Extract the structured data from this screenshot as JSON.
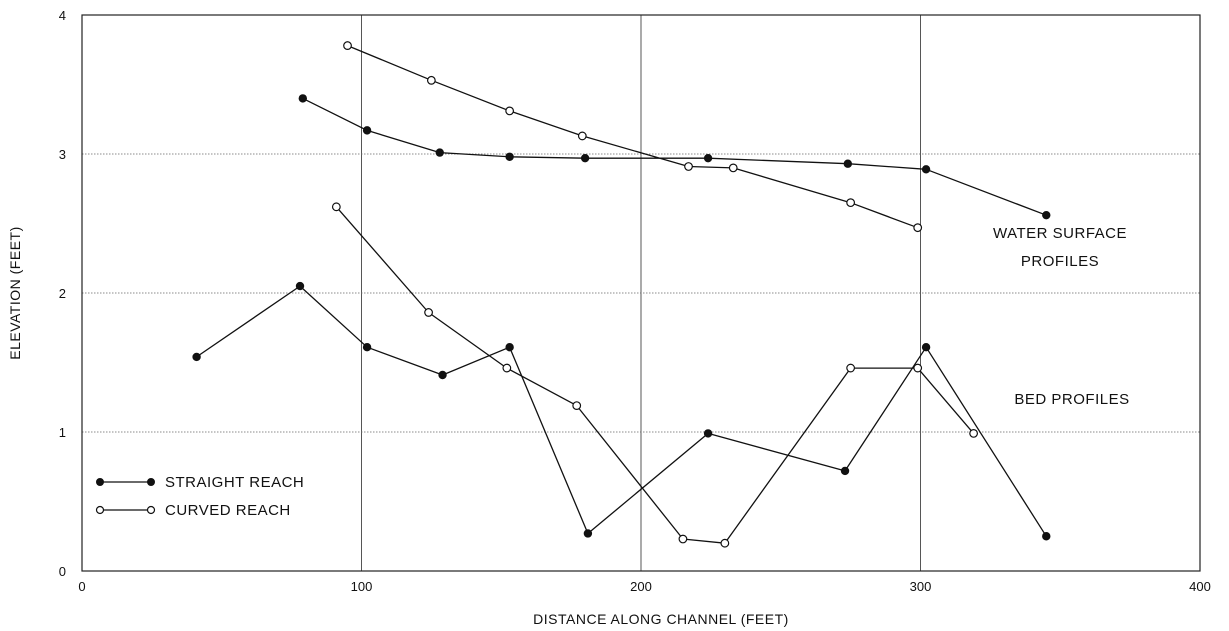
{
  "chart_data": {
    "type": "line",
    "title": "",
    "xlabel": "DISTANCE ALONG CHANNEL (FEET)",
    "ylabel": "ELEVATION (FEET)",
    "xlim": [
      0,
      400
    ],
    "ylim": [
      0,
      4
    ],
    "x_ticks": [
      0,
      100,
      200,
      300,
      400
    ],
    "y_ticks": [
      0,
      1,
      2,
      3,
      4
    ],
    "x_tick_labels": [
      "0",
      "100",
      "200",
      "300",
      "400"
    ],
    "y_tick_labels": [
      "0",
      "1",
      "2",
      "3",
      "4"
    ],
    "grid": true,
    "legend_position": "bottom-left",
    "series": [
      {
        "name": "STRAIGHT REACH",
        "group": "water-surface",
        "marker": "filled-circle",
        "x": [
          79,
          102,
          128,
          153,
          180,
          224,
          274,
          302,
          345
        ],
        "y": [
          3.4,
          3.17,
          3.01,
          2.98,
          2.97,
          2.97,
          2.93,
          2.89,
          2.56
        ]
      },
      {
        "name": "CURVED REACH",
        "group": "water-surface",
        "marker": "open-circle",
        "x": [
          95,
          125,
          153,
          179,
          217,
          233,
          275,
          299
        ],
        "y": [
          3.78,
          3.53,
          3.31,
          3.13,
          2.91,
          2.9,
          2.65,
          2.47
        ]
      },
      {
        "name": "STRAIGHT REACH",
        "group": "bed",
        "marker": "filled-circle",
        "x": [
          41,
          78,
          102,
          129,
          153,
          181,
          224,
          273,
          302,
          345
        ],
        "y": [
          1.54,
          2.05,
          1.61,
          1.41,
          1.61,
          0.27,
          0.99,
          0.72,
          1.61,
          0.25
        ]
      },
      {
        "name": "CURVED REACH",
        "group": "bed",
        "marker": "open-circle",
        "x": [
          91,
          124,
          152,
          177,
          215,
          230,
          275,
          299,
          319
        ],
        "y": [
          2.62,
          1.86,
          1.46,
          1.19,
          0.23,
          0.2,
          1.46,
          1.46,
          0.99
        ]
      }
    ],
    "legend": [
      {
        "label": "STRAIGHT REACH",
        "marker": "filled-circle"
      },
      {
        "label": "CURVED REACH",
        "marker": "open-circle"
      }
    ],
    "annotations": [
      {
        "lines": [
          "WATER SURFACE",
          "PROFILES"
        ]
      },
      {
        "lines": [
          "BED PROFILES"
        ]
      }
    ]
  }
}
